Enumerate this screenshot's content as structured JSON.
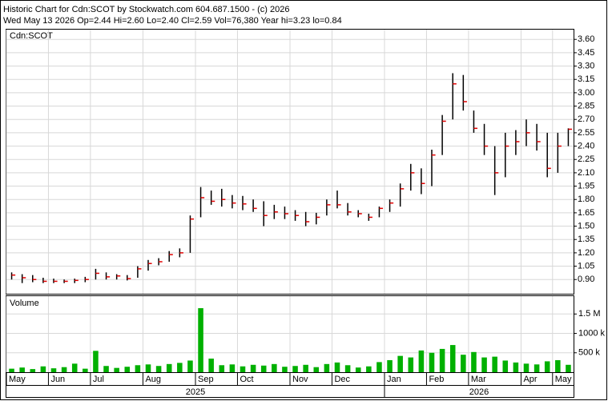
{
  "chart_data": {
    "type": "ohlc",
    "title": "Historic Chart for Cdn:SCOT by Stockwatch.com 604.687.1500 - (c) 2026",
    "subtitle": "Wed May 13 2026  Op=2.44  Hi=2.60  Lo=2.40  Cl=2.59  Vol=76,380  Year hi=3.23  lo=0.84",
    "symbol": "Cdn:SCOT",
    "volume_label": "Volume",
    "years": [
      "2025",
      "2026"
    ],
    "categories": [
      "May",
      null,
      null,
      null,
      "Jun",
      null,
      null,
      null,
      "Jul",
      null,
      null,
      null,
      null,
      "Aug",
      null,
      null,
      null,
      null,
      "Sep",
      null,
      null,
      null,
      "Oct",
      null,
      null,
      null,
      null,
      "Nov",
      null,
      null,
      null,
      "Dec",
      null,
      null,
      null,
      null,
      "Jan",
      null,
      null,
      null,
      "Feb",
      null,
      null,
      null,
      "Mar",
      null,
      null,
      null,
      null,
      "Apr",
      null,
      null,
      "May",
      null
    ],
    "high": [
      0.98,
      0.96,
      0.95,
      0.92,
      0.91,
      0.9,
      0.91,
      0.93,
      1.02,
      0.98,
      0.96,
      0.95,
      1.05,
      1.12,
      1.14,
      1.22,
      1.25,
      1.62,
      1.94,
      1.9,
      1.92,
      1.85,
      1.84,
      1.8,
      1.78,
      1.74,
      1.72,
      1.68,
      1.66,
      1.65,
      1.8,
      1.9,
      1.76,
      1.68,
      1.64,
      1.72,
      1.8,
      1.98,
      2.2,
      2.15,
      2.36,
      2.75,
      3.22,
      3.2,
      2.8,
      2.65,
      2.4,
      2.55,
      2.58,
      2.7,
      2.65,
      2.55,
      2.55,
      2.6
    ],
    "low": [
      0.9,
      0.86,
      0.87,
      0.86,
      0.86,
      0.86,
      0.86,
      0.87,
      0.9,
      0.9,
      0.9,
      0.89,
      0.92,
      1.0,
      1.06,
      1.1,
      1.15,
      1.2,
      1.6,
      1.74,
      1.72,
      1.7,
      1.68,
      1.66,
      1.5,
      1.58,
      1.58,
      1.56,
      1.5,
      1.52,
      1.62,
      1.7,
      1.62,
      1.6,
      1.56,
      1.6,
      1.66,
      1.72,
      1.9,
      1.86,
      1.95,
      2.3,
      2.7,
      2.8,
      2.55,
      2.3,
      1.85,
      2.05,
      2.3,
      2.4,
      2.35,
      2.05,
      2.1,
      2.4
    ],
    "close": [
      0.95,
      0.92,
      0.9,
      0.88,
      0.88,
      0.88,
      0.89,
      0.9,
      0.97,
      0.93,
      0.94,
      0.91,
      1.02,
      1.08,
      1.1,
      1.18,
      1.2,
      1.58,
      1.82,
      1.78,
      1.8,
      1.76,
      1.75,
      1.7,
      1.62,
      1.66,
      1.64,
      1.62,
      1.55,
      1.6,
      1.74,
      1.74,
      1.66,
      1.64,
      1.6,
      1.7,
      1.76,
      1.92,
      2.1,
      1.98,
      2.3,
      2.68,
      3.1,
      2.9,
      2.6,
      2.4,
      2.1,
      2.4,
      2.45,
      2.55,
      2.45,
      2.15,
      2.4,
      2.59
    ],
    "bar_color": "#000000",
    "close_color": "#e00000",
    "ylim": [
      0.74,
      3.71
    ],
    "yticks": [
      {
        "value": 0.9,
        "label": "0.90"
      },
      {
        "value": 1.05,
        "label": "1.05"
      },
      {
        "value": 1.2,
        "label": "1.20"
      },
      {
        "value": 1.35,
        "label": "1.35"
      },
      {
        "value": 1.5,
        "label": "1.50"
      },
      {
        "value": 1.65,
        "label": "1.65"
      },
      {
        "value": 1.8,
        "label": "1.80"
      },
      {
        "value": 1.95,
        "label": "1.95"
      },
      {
        "value": 2.1,
        "label": "2.10"
      },
      {
        "value": 2.25,
        "label": "2.25"
      },
      {
        "value": 2.4,
        "label": "2.40"
      },
      {
        "value": 2.55,
        "label": "2.55"
      },
      {
        "value": 2.7,
        "label": "2.70"
      },
      {
        "value": 2.85,
        "label": "2.85"
      },
      {
        "value": 3.0,
        "label": "3.00"
      },
      {
        "value": 3.15,
        "label": "3.15"
      },
      {
        "value": 3.3,
        "label": "3.30"
      },
      {
        "value": 3.45,
        "label": "3.45"
      },
      {
        "value": 3.6,
        "label": "3.60"
      }
    ],
    "volume": [
      90000,
      120000,
      80000,
      150000,
      100000,
      130000,
      220000,
      90000,
      550000,
      160000,
      110000,
      140000,
      180000,
      200000,
      160000,
      210000,
      240000,
      300000,
      1650000,
      350000,
      180000,
      200000,
      150000,
      190000,
      170000,
      210000,
      140000,
      160000,
      190000,
      130000,
      210000,
      250000,
      180000,
      120000,
      150000,
      260000,
      310000,
      420000,
      380000,
      560000,
      500000,
      600000,
      700000,
      450000,
      520000,
      380000,
      400000,
      300000,
      250000,
      220000,
      200000,
      280000,
      310000,
      190000
    ],
    "volume_color": "#00b000",
    "vlim": [
      0,
      1960000
    ],
    "vticks": [
      {
        "value": 500000,
        "label": "500 k"
      },
      {
        "value": 1000000,
        "label": "1000 k"
      },
      {
        "value": 1500000,
        "label": "1.5 M"
      }
    ],
    "grid": true
  }
}
